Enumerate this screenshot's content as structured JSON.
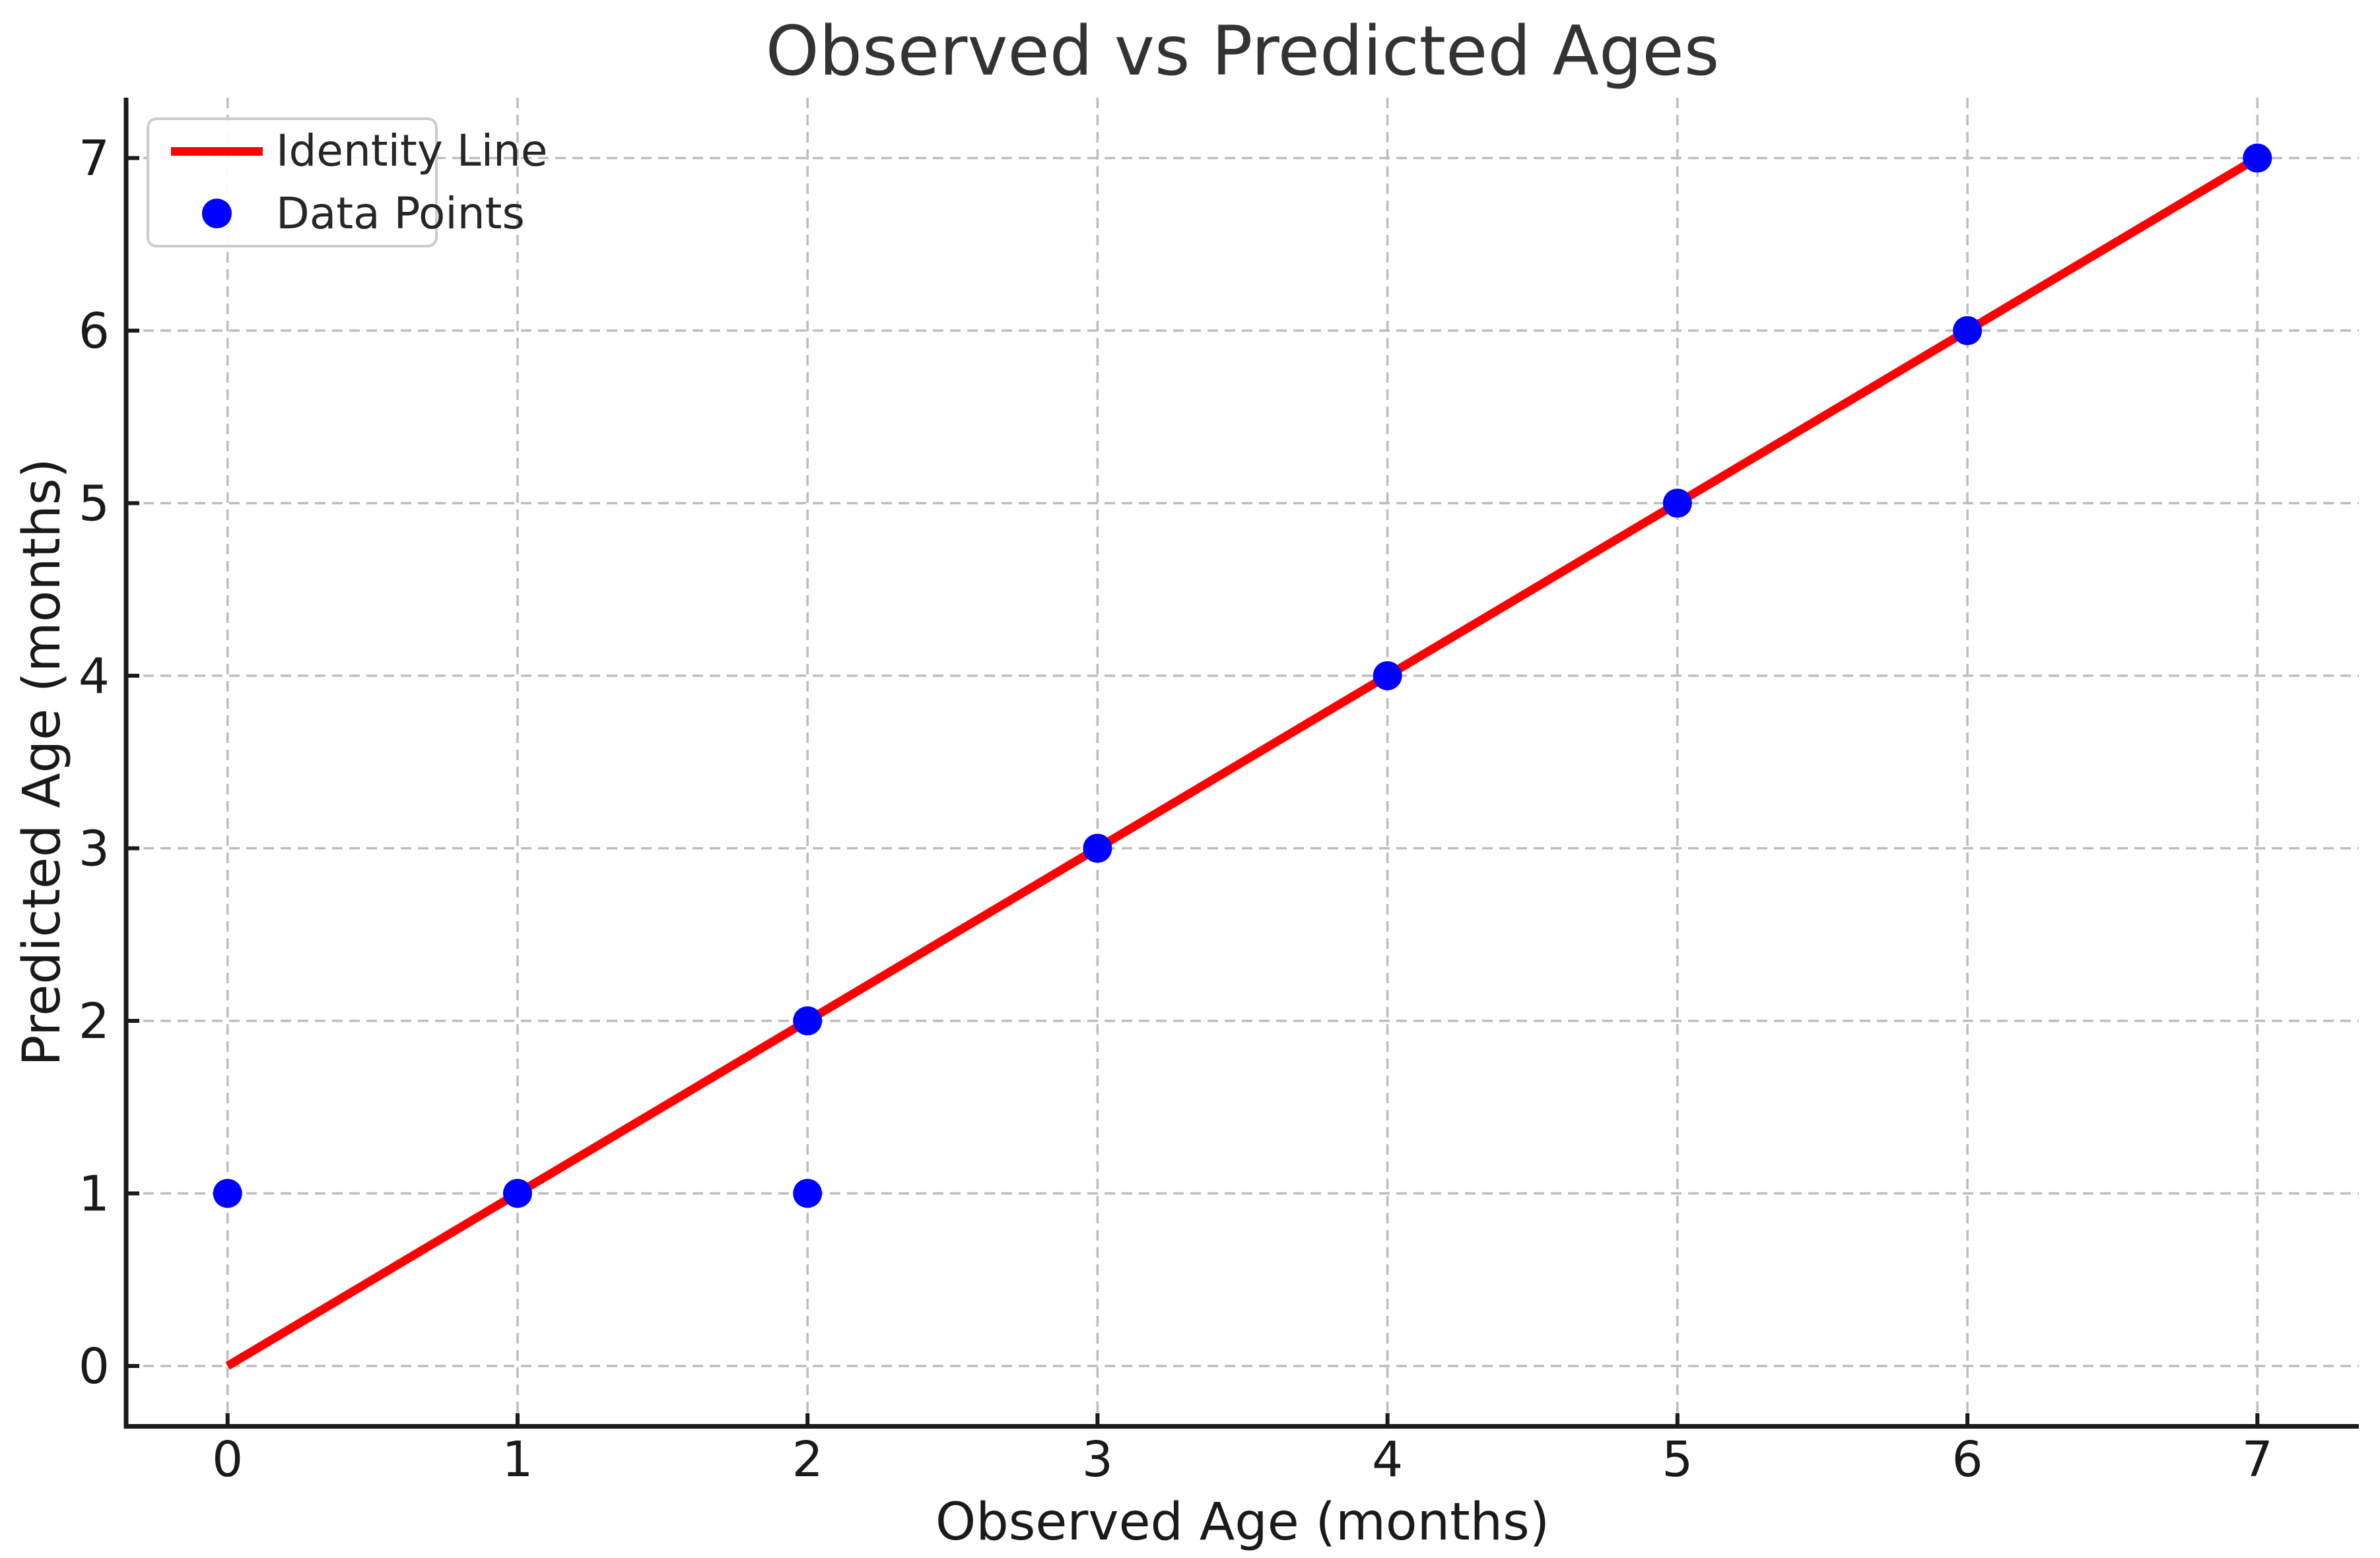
{
  "chart_data": {
    "type": "scatter",
    "title": "Observed vs Predicted Ages",
    "xlabel": "Observed Age (months)",
    "ylabel": "Predicted Age (months)",
    "xlim": [
      -0.35,
      7.35
    ],
    "ylim": [
      -0.35,
      7.35
    ],
    "xticks": [
      0,
      1,
      2,
      3,
      4,
      5,
      6,
      7
    ],
    "yticks": [
      0,
      1,
      2,
      3,
      4,
      5,
      6,
      7
    ],
    "grid": "dashed",
    "legend_position": "upper-left",
    "series": [
      {
        "name": "Identity Line",
        "kind": "line",
        "color": "#ff0000",
        "points": [
          [
            0,
            0
          ],
          [
            7,
            7
          ]
        ]
      },
      {
        "name": "Data Points",
        "kind": "scatter",
        "color": "#0000ff",
        "points": [
          [
            0,
            1
          ],
          [
            1,
            1
          ],
          [
            2,
            1
          ],
          [
            2,
            2
          ],
          [
            3,
            3
          ],
          [
            4,
            4
          ],
          [
            5,
            5
          ],
          [
            6,
            6
          ],
          [
            7,
            7
          ]
        ]
      }
    ],
    "legend": [
      {
        "label": "Identity Line",
        "swatch": "line",
        "color": "#ff0000"
      },
      {
        "label": "Data Points",
        "swatch": "dot",
        "color": "#0000ff"
      }
    ],
    "colors": {
      "line": "#ff0000",
      "marker": "#0000ff",
      "grid": "#bdbdbd",
      "spine": "#1a1a1a",
      "tick_text": "#1a1a1a",
      "title_text": "#333333",
      "legend_border": "#cccccc"
    }
  }
}
